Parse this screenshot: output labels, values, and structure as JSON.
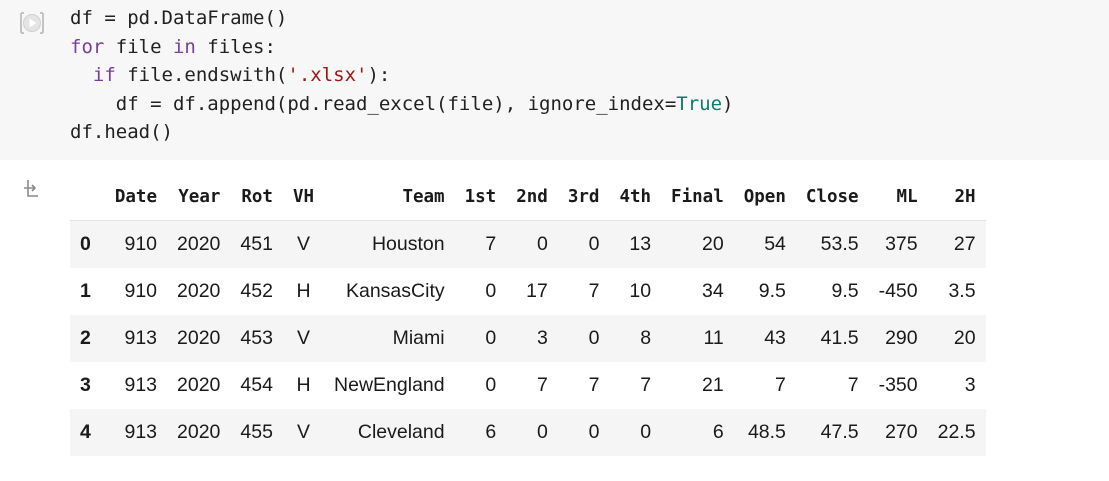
{
  "cell": {
    "code_lines": [
      {
        "indent": "",
        "parts": [
          {
            "t": "df = pd.DataFrame()",
            "c": ""
          }
        ]
      },
      {
        "indent": "",
        "parts": [
          {
            "t": "for",
            "c": "kw"
          },
          {
            "t": " file ",
            "c": ""
          },
          {
            "t": "in",
            "c": "kw"
          },
          {
            "t": " files:",
            "c": ""
          }
        ]
      },
      {
        "indent": "  ",
        "parts": [
          {
            "t": "if",
            "c": "kw"
          },
          {
            "t": " file.endswith(",
            "c": ""
          },
          {
            "t": "'.xlsx'",
            "c": "str"
          },
          {
            "t": "):",
            "c": ""
          }
        ]
      },
      {
        "indent": "    ",
        "parts": [
          {
            "t": "df = df.append(pd.read_excel(file), ignore_index=",
            "c": ""
          },
          {
            "t": "True",
            "c": "lit"
          },
          {
            "t": ")",
            "c": ""
          }
        ]
      },
      {
        "indent": "",
        "parts": [
          {
            "t": "df.head()",
            "c": ""
          }
        ]
      }
    ]
  },
  "output": {
    "columns": [
      "Date",
      "Year",
      "Rot",
      "VH",
      "Team",
      "1st",
      "2nd",
      "3rd",
      "4th",
      "Final",
      "Open",
      "Close",
      "ML",
      "2H"
    ],
    "rows": [
      {
        "index": "0",
        "cells": [
          "910",
          "2020",
          "451",
          "V",
          "Houston",
          "7",
          "0",
          "0",
          "13",
          "20",
          "54",
          "53.5",
          "375",
          "27"
        ]
      },
      {
        "index": "1",
        "cells": [
          "910",
          "2020",
          "452",
          "H",
          "KansasCity",
          "0",
          "17",
          "7",
          "10",
          "34",
          "9.5",
          "9.5",
          "-450",
          "3.5"
        ]
      },
      {
        "index": "2",
        "cells": [
          "913",
          "2020",
          "453",
          "V",
          "Miami",
          "0",
          "3",
          "0",
          "8",
          "11",
          "43",
          "41.5",
          "290",
          "20"
        ]
      },
      {
        "index": "3",
        "cells": [
          "913",
          "2020",
          "454",
          "H",
          "NewEngland",
          "0",
          "7",
          "7",
          "7",
          "21",
          "7",
          "7",
          "-350",
          "3"
        ]
      },
      {
        "index": "4",
        "cells": [
          "913",
          "2020",
          "455",
          "V",
          "Cleveland",
          "6",
          "0",
          "0",
          "0",
          "6",
          "48.5",
          "47.5",
          "270",
          "22.5"
        ]
      }
    ]
  },
  "icons": {
    "run": "play-icon",
    "output": "output-icon"
  },
  "colors": {
    "cell_bg": "#f7f7f7",
    "keyword": "#7a3e9d",
    "string": "#a31515",
    "literal": "#0b7d6e",
    "stripe": "#f5f5f5"
  }
}
